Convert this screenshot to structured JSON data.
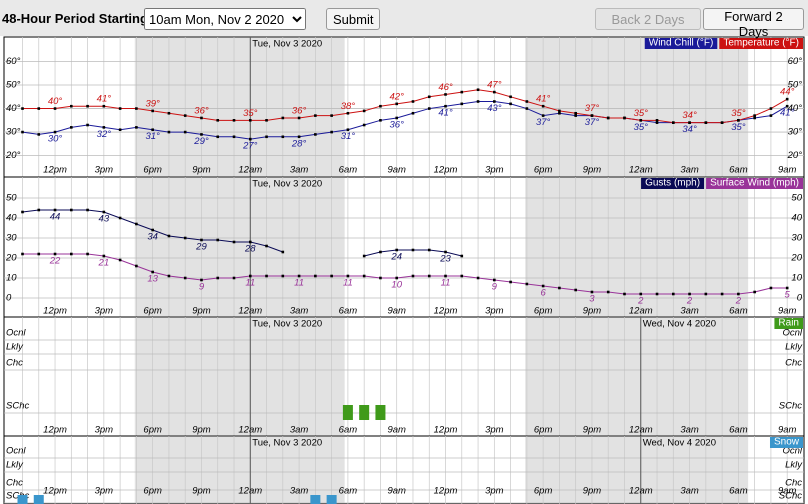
{
  "form": {
    "label": "48-Hour Period Starting:",
    "selected": "10am Mon, Nov 2 2020",
    "submit": "Submit",
    "back": "Back 2 Days",
    "forward": "Forward 2 Days"
  },
  "chart_data": [
    {
      "type": "line",
      "categories": [
        null,
        null,
        "12pm",
        null,
        null,
        "3pm",
        null,
        null,
        "6pm",
        null,
        null,
        "9pm",
        null,
        null,
        "12am",
        null,
        null,
        "3am",
        null,
        null,
        "6am",
        null,
        null,
        "9am",
        null,
        null,
        "12pm",
        null,
        null,
        "3pm",
        null,
        null,
        "6pm",
        null,
        null,
        "9pm",
        null,
        null,
        "12am",
        null,
        null,
        "3am",
        null,
        null,
        "6am",
        null,
        null,
        "9am"
      ],
      "day_markers": [
        {
          "value": 14,
          "label": "Tue, Nov 3 2020"
        }
      ],
      "ylim": [
        16,
        70
      ],
      "yticks": [
        {
          "value": 20,
          "label": "20°"
        },
        {
          "value": 30,
          "label": "30°"
        },
        {
          "value": 40,
          "label": "40°"
        },
        {
          "value": 50,
          "label": "50°"
        },
        {
          "value": 60,
          "label": "60°"
        }
      ],
      "series": [
        {
          "name": "Wind Chill (°F)",
          "color": "#1a1a99",
          "values": [
            30,
            29,
            30,
            32,
            33,
            32,
            31,
            32,
            31,
            30,
            30,
            29,
            28,
            28,
            27,
            28,
            28,
            28,
            29,
            30,
            31,
            33,
            35,
            36,
            38,
            40,
            41,
            42,
            43,
            43,
            42,
            40,
            37,
            38,
            37,
            37,
            36,
            36,
            35,
            34,
            34,
            34,
            34,
            34,
            35,
            36,
            37,
            41
          ],
          "value_labels": [
            null,
            null,
            "30°",
            null,
            null,
            "32°",
            null,
            null,
            "31°",
            null,
            null,
            "29°",
            null,
            null,
            "27°",
            null,
            null,
            "28°",
            null,
            null,
            "31°",
            null,
            null,
            "36°",
            null,
            null,
            "41°",
            null,
            null,
            "43°",
            null,
            null,
            "37°",
            null,
            null,
            "37°",
            null,
            null,
            "35°",
            null,
            null,
            "34°",
            null,
            null,
            "35°",
            null,
            null,
            "41°"
          ]
        },
        {
          "name": "Temperature (°F)",
          "color": "#cc1111",
          "values": [
            40,
            40,
            40,
            41,
            41,
            41,
            40,
            40,
            39,
            38,
            37,
            36,
            35,
            35,
            35,
            35,
            36,
            36,
            37,
            37,
            38,
            39,
            41,
            42,
            43,
            45,
            46,
            47,
            48,
            47,
            45,
            43,
            41,
            39,
            38,
            37,
            36,
            36,
            35,
            35,
            34,
            34,
            34,
            34,
            35,
            37,
            40,
            44
          ],
          "value_labels": [
            null,
            null,
            "40°",
            null,
            null,
            "41°",
            null,
            null,
            "39°",
            null,
            null,
            "36°",
            null,
            null,
            "35°",
            null,
            null,
            "36°",
            null,
            null,
            "38°",
            null,
            null,
            "42°",
            null,
            null,
            "46°",
            null,
            null,
            "47°",
            null,
            null,
            "41°",
            null,
            null,
            "37°",
            null,
            null,
            "35°",
            null,
            null,
            "34°",
            null,
            null,
            "35°",
            null,
            null,
            "44°"
          ]
        }
      ]
    },
    {
      "type": "line",
      "categories": [
        null,
        null,
        "12pm",
        null,
        null,
        "3pm",
        null,
        null,
        "6pm",
        null,
        null,
        "9pm",
        null,
        null,
        "12am",
        null,
        null,
        "3am",
        null,
        null,
        "6am",
        null,
        null,
        "9am",
        null,
        null,
        "12pm",
        null,
        null,
        "3pm",
        null,
        null,
        "6pm",
        null,
        null,
        "9pm",
        null,
        null,
        "12am",
        null,
        null,
        "3am",
        null,
        null,
        "6am",
        null,
        null,
        "9am"
      ],
      "day_markers": [
        {
          "value": 14,
          "label": "Tue, Nov 3 2020"
        }
      ],
      "ylim": [
        -4,
        60
      ],
      "yticks": [
        0,
        10,
        20,
        30,
        40,
        50
      ],
      "series": [
        {
          "name": "Gusts (mph)",
          "color": "#0a0a55",
          "values": [
            43,
            44,
            44,
            44,
            44,
            43,
            40,
            37,
            34,
            31,
            30,
            29,
            29,
            28,
            28,
            26,
            23,
            null,
            null,
            null,
            null,
            21,
            23,
            24,
            24,
            24,
            23,
            21,
            null,
            null,
            null,
            null,
            null,
            null,
            null,
            null,
            null,
            null,
            null,
            null,
            null,
            null,
            null,
            null,
            null,
            null,
            null,
            null
          ]
        },
        {
          "name": "Surface Wind (mph)",
          "color": "#993399",
          "values": [
            22,
            22,
            22,
            22,
            22,
            21,
            19,
            16,
            13,
            11,
            10,
            9,
            10,
            10,
            11,
            11,
            11,
            11,
            11,
            11,
            11,
            11,
            10,
            10,
            11,
            11,
            11,
            11,
            10,
            9,
            8,
            7,
            6,
            5,
            4,
            3,
            3,
            2,
            2,
            2,
            2,
            2,
            2,
            2,
            2,
            3,
            5,
            5
          ]
        }
      ]
    },
    {
      "type": "bar",
      "categories": [
        null,
        null,
        "12pm",
        null,
        null,
        "3pm",
        null,
        null,
        "6pm",
        null,
        null,
        "9pm",
        null,
        null,
        "12am",
        null,
        null,
        "3am",
        null,
        null,
        "6am",
        null,
        null,
        "9am",
        null,
        null,
        "12pm",
        null,
        null,
        "3pm",
        null,
        null,
        "6pm",
        null,
        null,
        "9pm",
        null,
        null,
        "12am",
        null,
        null,
        "3am",
        null,
        null,
        "6am",
        null,
        null,
        "9am"
      ],
      "day_markers": [
        {
          "value": 14,
          "label": "Tue, Nov 3 2020"
        },
        {
          "value": 38,
          "label": "Wed, Nov 4 2020"
        }
      ],
      "levels": [
        "Ocnl",
        "Lkly",
        "Chc",
        "SChc"
      ],
      "series": [
        {
          "name": "Rain",
          "color": "#3f9a1a",
          "values": [
            null,
            null,
            null,
            null,
            null,
            null,
            null,
            null,
            null,
            null,
            null,
            null,
            null,
            null,
            null,
            null,
            null,
            null,
            null,
            null,
            "SChc",
            "SChc",
            "SChc",
            null,
            null,
            null,
            null,
            null,
            null,
            null,
            null,
            null,
            null,
            null,
            null,
            null,
            null,
            null,
            null,
            null,
            null,
            null,
            null,
            null,
            null,
            null,
            null,
            null
          ]
        }
      ]
    },
    {
      "type": "bar",
      "categories": [
        null,
        null,
        "12pm",
        null,
        null,
        "3pm",
        null,
        null,
        "6pm",
        null,
        null,
        "9pm",
        null,
        null,
        "12am",
        null,
        null,
        "3am",
        null,
        null,
        "6am",
        null,
        null,
        "9am",
        null,
        null,
        "12pm",
        null,
        null,
        "3pm",
        null,
        null,
        "6pm",
        null,
        null,
        "9pm",
        null,
        null,
        "12am",
        null,
        null,
        "3am",
        null,
        null,
        "6am",
        null,
        null,
        "9am"
      ],
      "day_markers": [
        {
          "value": 14,
          "label": "Tue, Nov 3 2020"
        },
        {
          "value": 38,
          "label": "Wed, Nov 4 2020"
        }
      ],
      "levels": [
        "Ocnl",
        "Lkly",
        "Chc",
        "SChc"
      ],
      "series": [
        {
          "name": "Snow",
          "color": "#3a96cc",
          "values": [
            "SChc",
            "SChc",
            null,
            null,
            null,
            null,
            null,
            null,
            null,
            null,
            null,
            null,
            null,
            null,
            null,
            null,
            null,
            null,
            "SChc",
            "SChc",
            null,
            null,
            null,
            null,
            null,
            null,
            null,
            null,
            null,
            null,
            null,
            null,
            null,
            null,
            null,
            null,
            null,
            null,
            null,
            null,
            null,
            null,
            null,
            null,
            null,
            null,
            null,
            null
          ]
        }
      ]
    }
  ]
}
